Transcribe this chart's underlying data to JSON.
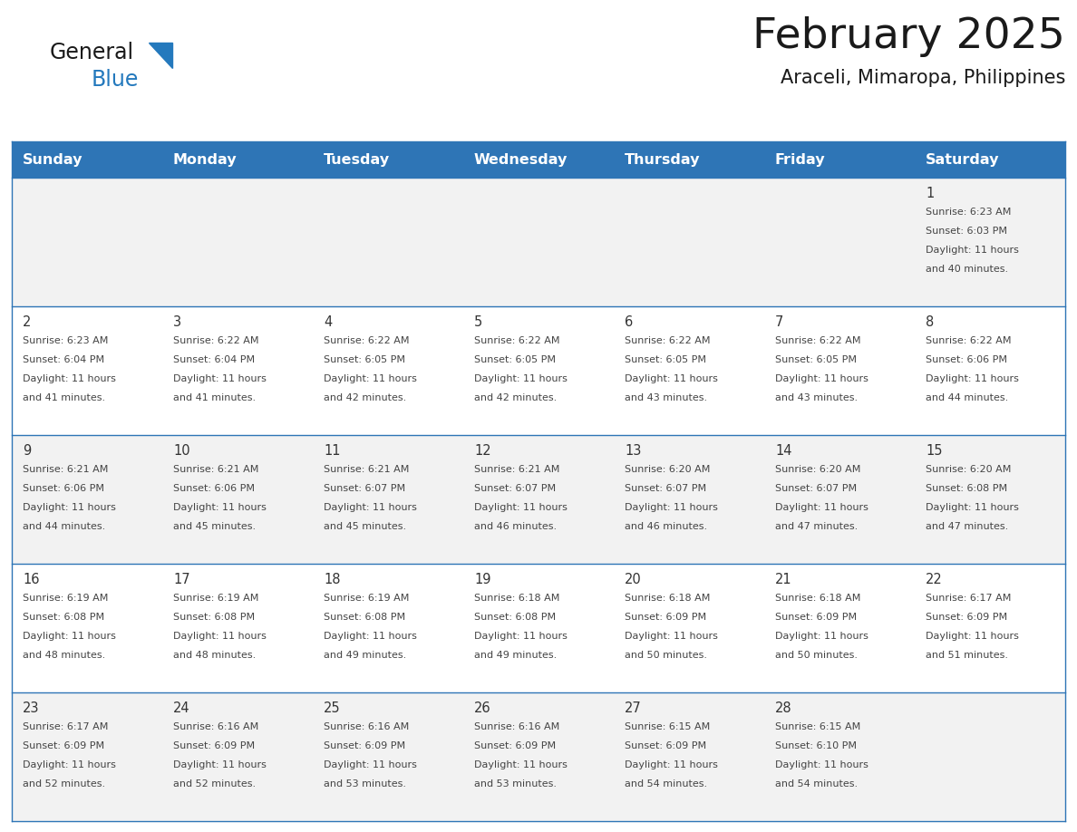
{
  "title": "February 2025",
  "subtitle": "Araceli, Mimaropa, Philippines",
  "days_of_week": [
    "Sunday",
    "Monday",
    "Tuesday",
    "Wednesday",
    "Thursday",
    "Friday",
    "Saturday"
  ],
  "header_bg": "#2E75B6",
  "header_text": "#FFFFFF",
  "bg_color": "#FFFFFF",
  "row_alt_color": "#F2F2F2",
  "cell_border_color": "#2E75B6",
  "day_num_color": "#333333",
  "text_color": "#444444",
  "title_color": "#1A1A1A",
  "logo_general_color": "#1A1A1A",
  "logo_blue_color": "#2479BD",
  "calendar": [
    [
      {
        "day": null,
        "sunrise": null,
        "sunset": null,
        "daylight": null
      },
      {
        "day": null,
        "sunrise": null,
        "sunset": null,
        "daylight": null
      },
      {
        "day": null,
        "sunrise": null,
        "sunset": null,
        "daylight": null
      },
      {
        "day": null,
        "sunrise": null,
        "sunset": null,
        "daylight": null
      },
      {
        "day": null,
        "sunrise": null,
        "sunset": null,
        "daylight": null
      },
      {
        "day": null,
        "sunrise": null,
        "sunset": null,
        "daylight": null
      },
      {
        "day": 1,
        "sunrise": "6:23 AM",
        "sunset": "6:03 PM",
        "daylight": "11 hours and 40 minutes."
      }
    ],
    [
      {
        "day": 2,
        "sunrise": "6:23 AM",
        "sunset": "6:04 PM",
        "daylight": "11 hours and 41 minutes."
      },
      {
        "day": 3,
        "sunrise": "6:22 AM",
        "sunset": "6:04 PM",
        "daylight": "11 hours and 41 minutes."
      },
      {
        "day": 4,
        "sunrise": "6:22 AM",
        "sunset": "6:05 PM",
        "daylight": "11 hours and 42 minutes."
      },
      {
        "day": 5,
        "sunrise": "6:22 AM",
        "sunset": "6:05 PM",
        "daylight": "11 hours and 42 minutes."
      },
      {
        "day": 6,
        "sunrise": "6:22 AM",
        "sunset": "6:05 PM",
        "daylight": "11 hours and 43 minutes."
      },
      {
        "day": 7,
        "sunrise": "6:22 AM",
        "sunset": "6:05 PM",
        "daylight": "11 hours and 43 minutes."
      },
      {
        "day": 8,
        "sunrise": "6:22 AM",
        "sunset": "6:06 PM",
        "daylight": "11 hours and 44 minutes."
      }
    ],
    [
      {
        "day": 9,
        "sunrise": "6:21 AM",
        "sunset": "6:06 PM",
        "daylight": "11 hours and 44 minutes."
      },
      {
        "day": 10,
        "sunrise": "6:21 AM",
        "sunset": "6:06 PM",
        "daylight": "11 hours and 45 minutes."
      },
      {
        "day": 11,
        "sunrise": "6:21 AM",
        "sunset": "6:07 PM",
        "daylight": "11 hours and 45 minutes."
      },
      {
        "day": 12,
        "sunrise": "6:21 AM",
        "sunset": "6:07 PM",
        "daylight": "11 hours and 46 minutes."
      },
      {
        "day": 13,
        "sunrise": "6:20 AM",
        "sunset": "6:07 PM",
        "daylight": "11 hours and 46 minutes."
      },
      {
        "day": 14,
        "sunrise": "6:20 AM",
        "sunset": "6:07 PM",
        "daylight": "11 hours and 47 minutes."
      },
      {
        "day": 15,
        "sunrise": "6:20 AM",
        "sunset": "6:08 PM",
        "daylight": "11 hours and 47 minutes."
      }
    ],
    [
      {
        "day": 16,
        "sunrise": "6:19 AM",
        "sunset": "6:08 PM",
        "daylight": "11 hours and 48 minutes."
      },
      {
        "day": 17,
        "sunrise": "6:19 AM",
        "sunset": "6:08 PM",
        "daylight": "11 hours and 48 minutes."
      },
      {
        "day": 18,
        "sunrise": "6:19 AM",
        "sunset": "6:08 PM",
        "daylight": "11 hours and 49 minutes."
      },
      {
        "day": 19,
        "sunrise": "6:18 AM",
        "sunset": "6:08 PM",
        "daylight": "11 hours and 49 minutes."
      },
      {
        "day": 20,
        "sunrise": "6:18 AM",
        "sunset": "6:09 PM",
        "daylight": "11 hours and 50 minutes."
      },
      {
        "day": 21,
        "sunrise": "6:18 AM",
        "sunset": "6:09 PM",
        "daylight": "11 hours and 50 minutes."
      },
      {
        "day": 22,
        "sunrise": "6:17 AM",
        "sunset": "6:09 PM",
        "daylight": "11 hours and 51 minutes."
      }
    ],
    [
      {
        "day": 23,
        "sunrise": "6:17 AM",
        "sunset": "6:09 PM",
        "daylight": "11 hours and 52 minutes."
      },
      {
        "day": 24,
        "sunrise": "6:16 AM",
        "sunset": "6:09 PM",
        "daylight": "11 hours and 52 minutes."
      },
      {
        "day": 25,
        "sunrise": "6:16 AM",
        "sunset": "6:09 PM",
        "daylight": "11 hours and 53 minutes."
      },
      {
        "day": 26,
        "sunrise": "6:16 AM",
        "sunset": "6:09 PM",
        "daylight": "11 hours and 53 minutes."
      },
      {
        "day": 27,
        "sunrise": "6:15 AM",
        "sunset": "6:09 PM",
        "daylight": "11 hours and 54 minutes."
      },
      {
        "day": 28,
        "sunrise": "6:15 AM",
        "sunset": "6:10 PM",
        "daylight": "11 hours and 54 minutes."
      },
      {
        "day": null,
        "sunrise": null,
        "sunset": null,
        "daylight": null
      }
    ]
  ]
}
